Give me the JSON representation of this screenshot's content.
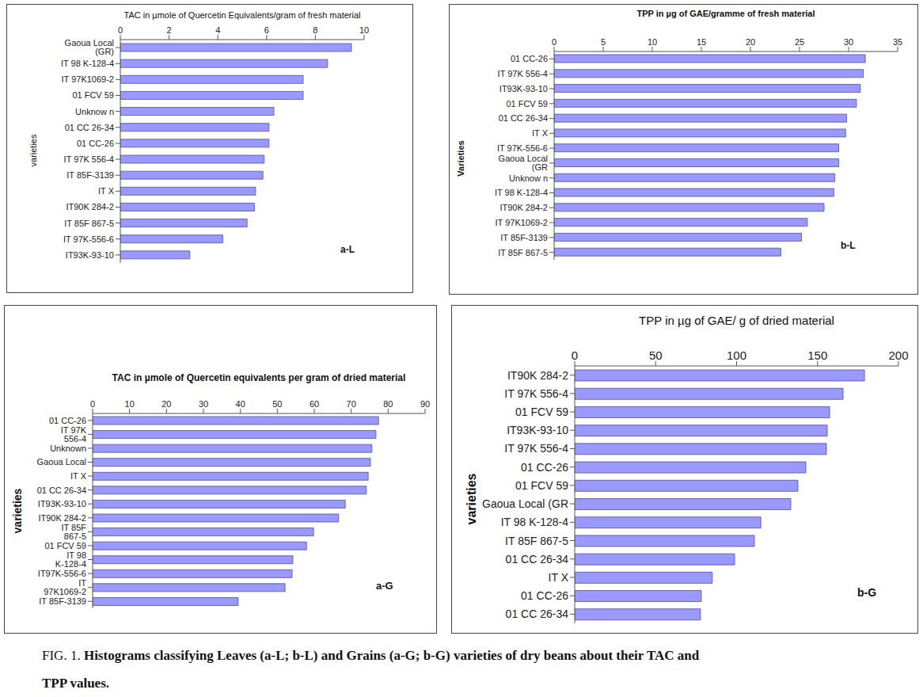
{
  "chart_data": [
    {
      "type": "bar",
      "orientation": "horizontal",
      "title": "TAC in µmole of Quercetin Equivalents/gram of fresh material",
      "y_label": "varieties",
      "panel_label": "a-L",
      "categories": [
        "Gaoua Local (GR)",
        "IT 98 K-128-4",
        "IT 97K1069-2",
        "01 FCV 59",
        "Unknow n",
        "01 CC 26-34",
        "01 CC-26",
        "IT 97K 556-4",
        "IT 85F-3139",
        "IT X",
        "IT90K 284-2",
        "IT 85F 867-5",
        "IT 97K-556-6",
        "IT93K-93-10"
      ],
      "values": [
        9.48,
        8.5,
        7.5,
        7.5,
        6.3,
        6.1,
        6.1,
        5.9,
        5.85,
        5.55,
        5.5,
        5.2,
        4.2,
        2.85
      ],
      "color": "#9999ff",
      "xlim": [
        0,
        10
      ],
      "xticks": [
        0,
        2,
        4,
        6,
        8,
        10
      ]
    },
    {
      "type": "bar",
      "orientation": "horizontal",
      "title": "TPP in µg of GAE/gramme of fresh material",
      "y_label": "Varieties",
      "panel_label": "b-L",
      "categories": [
        "01 CC-26",
        "IT 97K 556-4",
        "IT93K-93-10",
        "01 FCV 59",
        "01 CC 26-34",
        "IT X",
        "IT 97K-556-6",
        "Gaoua Local (GR",
        "Unknow n",
        "IT 98 K-128-4",
        "IT90K 284-2",
        "IT 97K1069-2",
        "IT 85F-3139",
        "IT 85F 867-5"
      ],
      "values": [
        31.7,
        31.5,
        31.2,
        30.8,
        29.8,
        29.7,
        29.0,
        29.0,
        28.6,
        28.5,
        27.5,
        25.8,
        25.2,
        23.1
      ],
      "color": "#9999ff",
      "xlim": [
        0,
        35
      ],
      "xticks": [
        0,
        5,
        10,
        15,
        20,
        25,
        30,
        35
      ]
    },
    {
      "type": "bar",
      "orientation": "horizontal",
      "title": "TAC in µmole of Quercetin equivalents per gram of dried material",
      "y_label": "varieties",
      "panel_label": "a-G",
      "categories": [
        "01 CC-26",
        "IT 97K 556-4",
        "Unknown",
        "Gaoua Local",
        "IT X",
        "01 CC 26-34",
        "IT93K-93-10",
        "IT90K 284-2",
        "IT 85F 867-5",
        "01 FCV 59",
        "IT 98 K-128-4",
        "IT97K-556-6",
        "IT 97K1069-2",
        "IT 85F-3139"
      ],
      "values": [
        77.4,
        76.7,
        75.6,
        75.2,
        74.6,
        74.1,
        68.4,
        66.6,
        59.8,
        57.9,
        54.2,
        54.0,
        52.1,
        39.4
      ],
      "color": "#9999ff",
      "xlim": [
        0,
        90
      ],
      "xticks": [
        0,
        10,
        20,
        30,
        40,
        50,
        60,
        70,
        80,
        90
      ]
    },
    {
      "type": "bar",
      "orientation": "horizontal",
      "title": "TPP in µg of GAE/ g of dried material",
      "y_label": "varieties",
      "panel_label": "b-G",
      "categories": [
        "IT90K 284-2",
        "IT 97K 556-4",
        "01 FCV 59",
        "IT93K-93-10",
        "IT 97K 556-4",
        "01 CC-26",
        "01 FCV 59",
        "Gaoua Local (GR",
        "IT 98 K-128-4",
        "IT 85F 867-5",
        "01 CC 26-34",
        "IT X",
        "01 CC-26",
        "01 CC 26-34"
      ],
      "values": [
        179,
        165.8,
        157.5,
        156,
        155.5,
        142.8,
        137.9,
        133.5,
        115,
        111,
        98.8,
        85,
        78.2,
        77.7
      ],
      "color": "#9999ff",
      "xlim": [
        0,
        200
      ],
      "xticks": [
        0,
        50,
        100,
        150,
        200
      ]
    }
  ],
  "caption": {
    "label": "FIG. 1.",
    "lines": [
      "Histograms classifying Leaves (a-L; b-L) and Grains (a-G; b-G) varieties of dry beans about their TAC and",
      "TPP values."
    ]
  }
}
